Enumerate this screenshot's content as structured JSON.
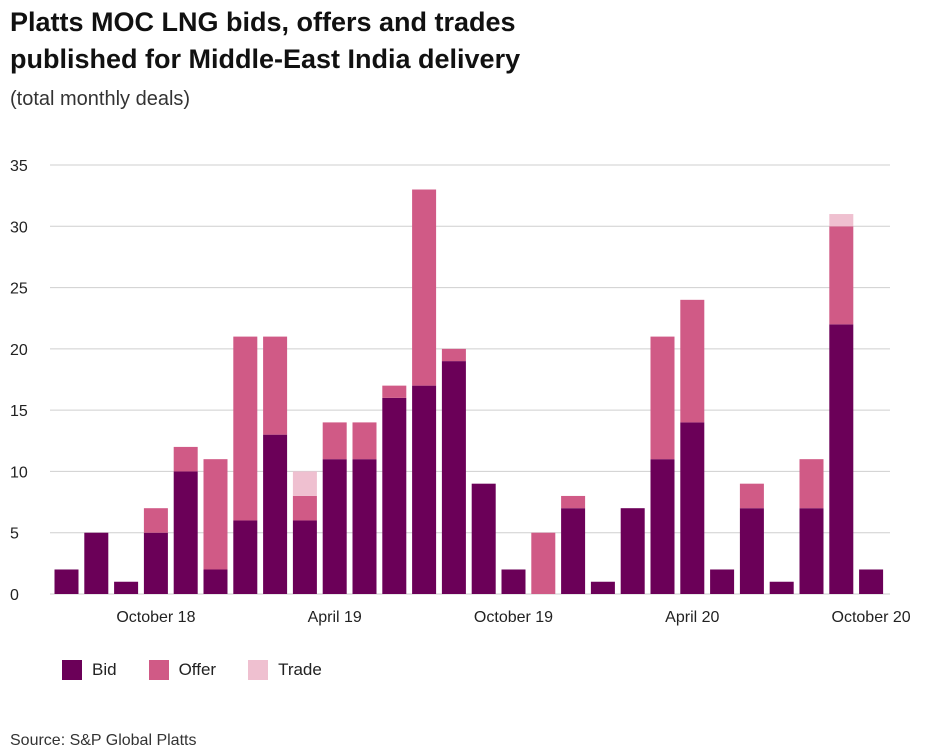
{
  "title_lines": [
    "Platts MOC LNG bids, offers and trades",
    "published for Middle-East India delivery"
  ],
  "subtitle": "(total monthly deals)",
  "source": "Source: S&P Global Platts",
  "colors": {
    "bid": "#6b0058",
    "offer": "#d05a86",
    "trade": "#efc0d0",
    "grid": "#cfcfcf"
  },
  "chart_data": {
    "type": "bar",
    "stacked": true,
    "title": "Platts MOC LNG bids, offers and trades published for Middle-East India delivery",
    "subtitle": "(total monthly deals)",
    "x_tick_labels": [
      "October 18",
      "April 19",
      "October 19",
      "April 20",
      "October 20"
    ],
    "x_tick_indices": [
      3,
      9,
      15,
      21,
      27
    ],
    "ylim": [
      0,
      35
    ],
    "yticks": [
      0,
      5,
      10,
      15,
      20,
      25,
      30,
      35
    ],
    "grid": true,
    "legend_position": "bottom-left",
    "series": [
      {
        "name": "Bid",
        "values": [
          2,
          5,
          1,
          5,
          10,
          2,
          6,
          13,
          6,
          11,
          11,
          16,
          17,
          19,
          9,
          2,
          0,
          7,
          1,
          7,
          11,
          14,
          2,
          7,
          1,
          7,
          22,
          2
        ]
      },
      {
        "name": "Offer",
        "values": [
          0,
          0,
          0,
          2,
          2,
          9,
          15,
          8,
          2,
          3,
          3,
          1,
          16,
          1,
          0,
          0,
          5,
          1,
          0,
          0,
          10,
          10,
          0,
          2,
          0,
          4,
          8,
          0
        ]
      },
      {
        "name": "Trade",
        "values": [
          0,
          0,
          0,
          0,
          0,
          0,
          0,
          0,
          2,
          0,
          0,
          0,
          0,
          0,
          0,
          0,
          0,
          0,
          0,
          0,
          0,
          0,
          0,
          0,
          0,
          0,
          1,
          0
        ]
      }
    ]
  }
}
